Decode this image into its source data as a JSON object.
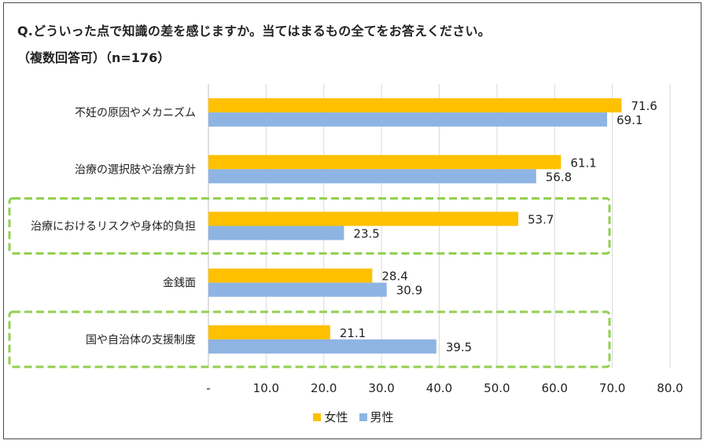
{
  "chart_data": {
    "type": "bar",
    "orientation": "horizontal",
    "title": "Q.どういった点で知識の差を感じますか。当てはまるもの全てをお答えください。",
    "subtitle": "（複数回答可）（n=176）",
    "categories": [
      "不妊の原因やメカニズム",
      "治療の選択肢や治療方針",
      "治療におけるリスクや身体的負担",
      "金銭面",
      "国や自治体の支援制度"
    ],
    "series": [
      {
        "name": "女性",
        "color": "#FFC000",
        "values": [
          71.6,
          61.1,
          53.7,
          28.4,
          21.1
        ]
      },
      {
        "name": "男性",
        "color": "#8EB4E3",
        "values": [
          69.1,
          56.8,
          23.5,
          30.9,
          39.5
        ]
      }
    ],
    "value_labels": [
      [
        "71.6",
        "61.1",
        "53.7",
        "28.4",
        "21.1"
      ],
      [
        "69.1",
        "56.8",
        "23.5",
        "30.9",
        "39.5"
      ]
    ],
    "xlim": [
      0,
      80
    ],
    "ticks": [
      0,
      10,
      20,
      30,
      40,
      50,
      60,
      70,
      80
    ],
    "tick_labels": [
      "-",
      "10.0",
      "20.0",
      "30.0",
      "40.0",
      "50.0",
      "60.0",
      "70.0",
      "80.0"
    ],
    "grid": true,
    "legend_position": "bottom",
    "highlighted_categories": [
      2,
      4
    ],
    "highlight_color": "#92D050"
  }
}
